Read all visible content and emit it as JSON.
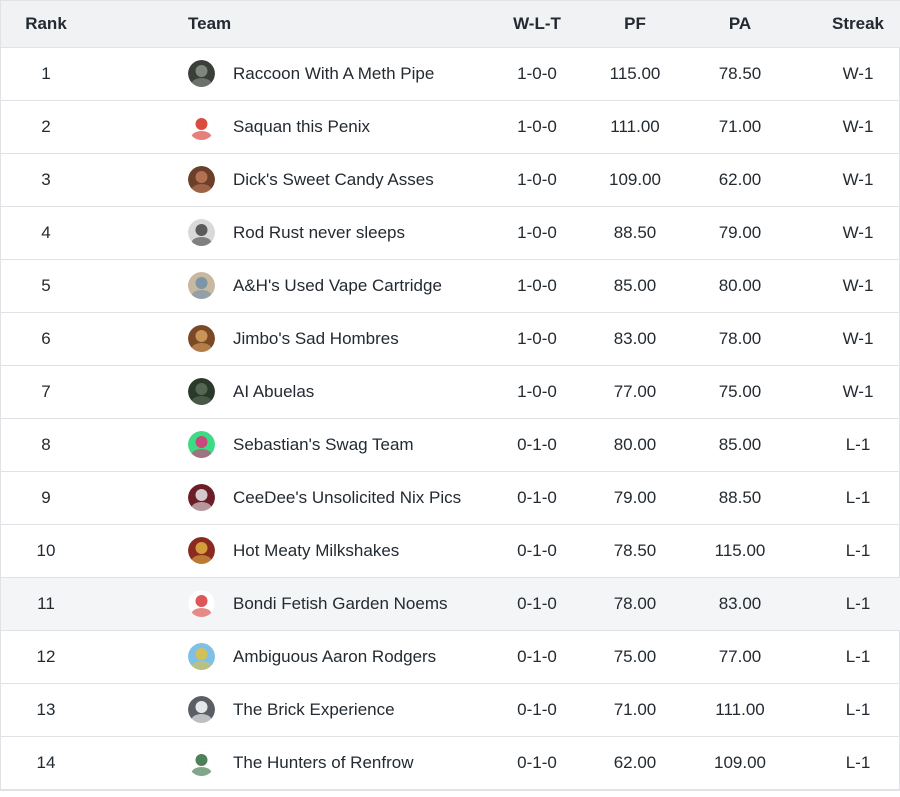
{
  "headers": {
    "rank": "Rank",
    "team": "Team",
    "wlt": "W-L-T",
    "pf": "PF",
    "pa": "PA",
    "streak": "Streak"
  },
  "rows": [
    {
      "rank": "1",
      "team": "Raccoon With A Meth Pipe",
      "wlt": "1-0-0",
      "pf": "115.00",
      "pa": "78.50",
      "streak": "W-1",
      "logo_colors": [
        "#3a3f3a",
        "#8a9488"
      ]
    },
    {
      "rank": "2",
      "team": "Saquan this Penix",
      "wlt": "1-0-0",
      "pf": "111.00",
      "pa": "71.00",
      "streak": "W-1",
      "logo_colors": [
        "#ffffff",
        "#d52b1e"
      ]
    },
    {
      "rank": "3",
      "team": "Dick's Sweet Candy Asses",
      "wlt": "1-0-0",
      "pf": "109.00",
      "pa": "62.00",
      "streak": "W-1",
      "logo_colors": [
        "#6b3f2a",
        "#c07a5a"
      ]
    },
    {
      "rank": "4",
      "team": "Rod Rust never sleeps",
      "wlt": "1-0-0",
      "pf": "88.50",
      "pa": "79.00",
      "streak": "W-1",
      "logo_colors": [
        "#d9d9d9",
        "#444444"
      ]
    },
    {
      "rank": "5",
      "team": "A&H's Used Vape Cartridge",
      "wlt": "1-0-0",
      "pf": "85.00",
      "pa": "80.00",
      "streak": "W-1",
      "logo_colors": [
        "#c9b8a0",
        "#6f8fa8"
      ]
    },
    {
      "rank": "6",
      "team": "Jimbo's Sad Hombres",
      "wlt": "1-0-0",
      "pf": "83.00",
      "pa": "78.00",
      "streak": "W-1",
      "logo_colors": [
        "#7a4a26",
        "#d8a060"
      ]
    },
    {
      "rank": "7",
      "team": "AI Abuelas",
      "wlt": "1-0-0",
      "pf": "77.00",
      "pa": "75.00",
      "streak": "W-1",
      "logo_colors": [
        "#2a3a2a",
        "#5d6f5a"
      ]
    },
    {
      "rank": "8",
      "team": "Sebastian's Swag Team",
      "wlt": "0-1-0",
      "pf": "80.00",
      "pa": "85.00",
      "streak": "L-1",
      "logo_colors": [
        "#3ddc84",
        "#e0307a"
      ]
    },
    {
      "rank": "9",
      "team": "CeeDee's Unsolicited Nix Pics",
      "wlt": "0-1-0",
      "pf": "79.00",
      "pa": "88.50",
      "streak": "L-1",
      "logo_colors": [
        "#6b1e28",
        "#e8e8e8"
      ]
    },
    {
      "rank": "10",
      "team": "Hot Meaty Milkshakes",
      "wlt": "0-1-0",
      "pf": "78.50",
      "pa": "115.00",
      "streak": "L-1",
      "logo_colors": [
        "#8a2a20",
        "#e0b040"
      ]
    },
    {
      "rank": "11",
      "team": "Bondi Fetish Garden Noems",
      "wlt": "0-1-0",
      "pf": "78.00",
      "pa": "83.00",
      "streak": "L-1",
      "logo_colors": [
        "#ffffff",
        "#d63a3a"
      ]
    },
    {
      "rank": "12",
      "team": "Ambiguous Aaron Rodgers",
      "wlt": "0-1-0",
      "pf": "75.00",
      "pa": "77.00",
      "streak": "L-1",
      "logo_colors": [
        "#7ec0e8",
        "#e0c040"
      ]
    },
    {
      "rank": "13",
      "team": "The Brick Experience",
      "wlt": "0-1-0",
      "pf": "71.00",
      "pa": "111.00",
      "streak": "L-1",
      "logo_colors": [
        "#5a5f66",
        "#ffffff"
      ]
    },
    {
      "rank": "14",
      "team": "The Hunters of Renfrow",
      "wlt": "0-1-0",
      "pf": "62.00",
      "pa": "109.00",
      "streak": "L-1",
      "logo_colors": [
        "#ffffff",
        "#2f6b3a"
      ]
    }
  ],
  "colors": {
    "header_bg": "#f1f2f4",
    "row_border": "#e0e2e6",
    "highlight_row_bg": "#f4f5f7",
    "text": "#232a31"
  },
  "highlighted_row_index": 10
}
